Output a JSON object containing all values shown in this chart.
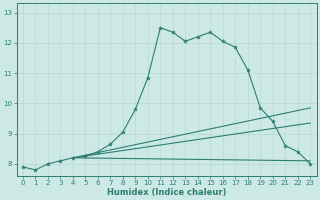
{
  "xlabel": "Humidex (Indice chaleur)",
  "xlim": [
    -0.5,
    23.5
  ],
  "ylim": [
    7.6,
    13.3
  ],
  "xticks": [
    0,
    1,
    2,
    3,
    4,
    5,
    6,
    7,
    8,
    9,
    10,
    11,
    12,
    13,
    14,
    15,
    16,
    17,
    18,
    19,
    20,
    21,
    22,
    23
  ],
  "yticks": [
    8,
    9,
    10,
    11,
    12,
    13
  ],
  "bg_color": "#cce9e5",
  "grid_color": "#b8d8d4",
  "line_color": "#2e7d72",
  "line1_x": [
    0,
    1,
    2,
    3,
    4,
    5,
    6,
    7,
    8,
    9,
    10,
    11,
    12,
    13,
    14,
    15,
    16,
    17,
    18,
    19,
    20,
    21,
    22,
    23
  ],
  "line1_y": [
    7.9,
    7.8,
    8.0,
    8.1,
    8.2,
    8.25,
    8.4,
    8.65,
    9.05,
    9.8,
    10.85,
    12.5,
    12.35,
    12.05,
    12.2,
    12.35,
    12.05,
    11.85,
    11.1,
    9.85,
    9.4,
    8.6,
    8.4,
    8.0
  ],
  "line2_x": [
    4,
    23
  ],
  "line2_y": [
    8.2,
    9.85
  ],
  "line3_x": [
    4,
    23
  ],
  "line3_y": [
    8.2,
    9.35
  ],
  "line4_x": [
    4,
    23
  ],
  "line4_y": [
    8.2,
    8.1
  ]
}
